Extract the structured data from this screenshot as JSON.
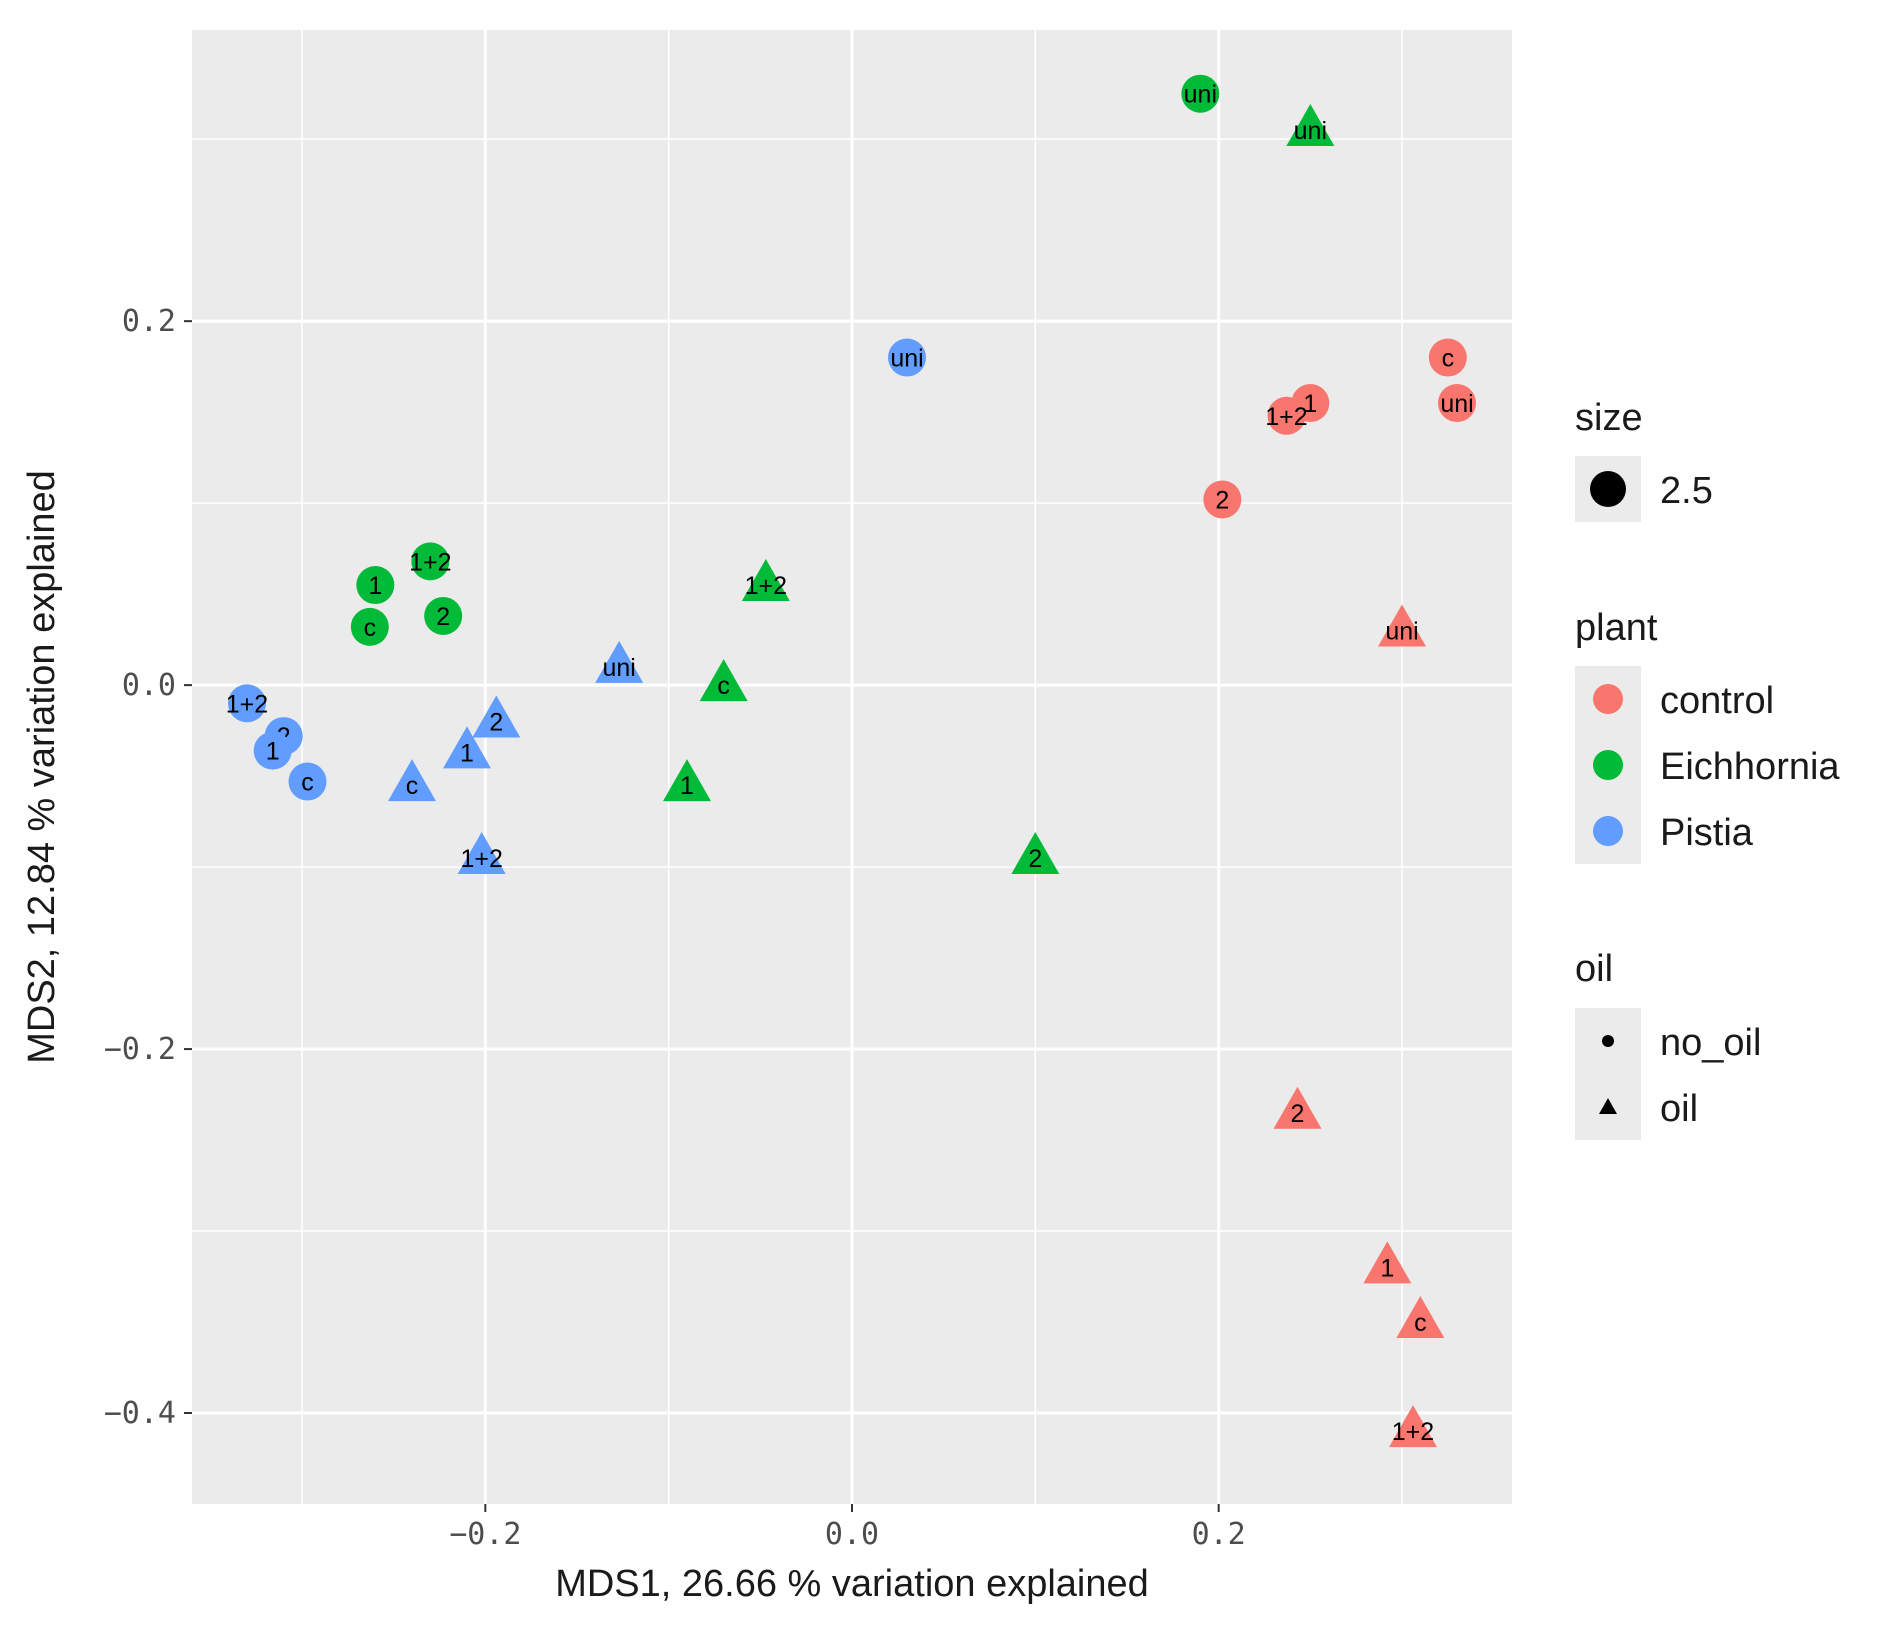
{
  "chart_data": {
    "type": "scatter",
    "xlabel": "MDS1, 26.66 % variation explained",
    "ylabel": "MDS2, 12.84 % variation explained",
    "xlim": [
      -0.36,
      0.36
    ],
    "ylim": [
      -0.45,
      0.36
    ],
    "x_ticks": [
      -0.2,
      0.0,
      0.2
    ],
    "x_tick_labels": [
      "−0.2",
      "0.0",
      "0.2"
    ],
    "y_ticks": [
      -0.4,
      -0.2,
      0.0,
      0.2
    ],
    "y_tick_labels": [
      "−0.4",
      "−0.2",
      "0.0",
      "0.2"
    ],
    "grid": true,
    "legends": {
      "size": {
        "title": "size",
        "items": [
          "2.5"
        ]
      },
      "plant": {
        "title": "plant",
        "items": [
          {
            "label": "control",
            "color": "#F8766D"
          },
          {
            "label": "Eichhornia",
            "color": "#00BA38"
          },
          {
            "label": "Pistia",
            "color": "#619CFF"
          }
        ]
      },
      "oil": {
        "title": "oil",
        "items": [
          {
            "label": "no_oil",
            "shape": "circle"
          },
          {
            "label": "oil",
            "shape": "triangle"
          }
        ]
      }
    },
    "colors": {
      "control": "#F8766D",
      "Eichhornia": "#00BA38",
      "Pistia": "#619CFF"
    },
    "points": [
      {
        "x": 0.19,
        "y": 0.325,
        "plant": "Eichhornia",
        "oil": "no_oil",
        "label": "uni"
      },
      {
        "x": 0.25,
        "y": 0.305,
        "plant": "Eichhornia",
        "oil": "oil",
        "label": "uni"
      },
      {
        "x": 0.03,
        "y": 0.18,
        "plant": "Pistia",
        "oil": "no_oil",
        "label": "uni"
      },
      {
        "x": 0.325,
        "y": 0.18,
        "plant": "control",
        "oil": "no_oil",
        "label": "c"
      },
      {
        "x": 0.33,
        "y": 0.155,
        "plant": "control",
        "oil": "no_oil",
        "label": "uni"
      },
      {
        "x": 0.25,
        "y": 0.155,
        "plant": "control",
        "oil": "no_oil",
        "label": "1"
      },
      {
        "x": 0.237,
        "y": 0.148,
        "plant": "control",
        "oil": "no_oil",
        "label": "1+2"
      },
      {
        "x": 0.202,
        "y": 0.102,
        "plant": "control",
        "oil": "no_oil",
        "label": "2"
      },
      {
        "x": 0.3,
        "y": 0.03,
        "plant": "control",
        "oil": "oil",
        "label": "uni"
      },
      {
        "x": -0.26,
        "y": 0.055,
        "plant": "Eichhornia",
        "oil": "no_oil",
        "label": "1"
      },
      {
        "x": -0.23,
        "y": 0.068,
        "plant": "Eichhornia",
        "oil": "no_oil",
        "label": "1+2"
      },
      {
        "x": -0.223,
        "y": 0.038,
        "plant": "Eichhornia",
        "oil": "no_oil",
        "label": "2"
      },
      {
        "x": -0.263,
        "y": 0.032,
        "plant": "Eichhornia",
        "oil": "no_oil",
        "label": "c"
      },
      {
        "x": -0.047,
        "y": 0.055,
        "plant": "Eichhornia",
        "oil": "oil",
        "label": "1+2"
      },
      {
        "x": -0.07,
        "y": 0.0,
        "plant": "Eichhornia",
        "oil": "oil",
        "label": "c"
      },
      {
        "x": -0.09,
        "y": -0.055,
        "plant": "Eichhornia",
        "oil": "oil",
        "label": "1"
      },
      {
        "x": 0.1,
        "y": -0.095,
        "plant": "Eichhornia",
        "oil": "oil",
        "label": "2"
      },
      {
        "x": -0.127,
        "y": 0.01,
        "plant": "Pistia",
        "oil": "oil",
        "label": "uni"
      },
      {
        "x": -0.33,
        "y": -0.01,
        "plant": "Pistia",
        "oil": "no_oil",
        "label": "1+2"
      },
      {
        "x": -0.31,
        "y": -0.028,
        "plant": "Pistia",
        "oil": "no_oil",
        "label": "2"
      },
      {
        "x": -0.316,
        "y": -0.036,
        "plant": "Pistia",
        "oil": "no_oil",
        "label": "1"
      },
      {
        "x": -0.297,
        "y": -0.053,
        "plant": "Pistia",
        "oil": "no_oil",
        "label": "c"
      },
      {
        "x": -0.194,
        "y": -0.02,
        "plant": "Pistia",
        "oil": "oil",
        "label": "2"
      },
      {
        "x": -0.21,
        "y": -0.037,
        "plant": "Pistia",
        "oil": "oil",
        "label": "1"
      },
      {
        "x": -0.24,
        "y": -0.055,
        "plant": "Pistia",
        "oil": "oil",
        "label": "c"
      },
      {
        "x": -0.202,
        "y": -0.095,
        "plant": "Pistia",
        "oil": "oil",
        "label": "1+2"
      },
      {
        "x": 0.243,
        "y": -0.235,
        "plant": "control",
        "oil": "oil",
        "label": "2"
      },
      {
        "x": 0.292,
        "y": -0.32,
        "plant": "control",
        "oil": "oil",
        "label": "1"
      },
      {
        "x": 0.31,
        "y": -0.35,
        "plant": "control",
        "oil": "oil",
        "label": "c"
      },
      {
        "x": 0.306,
        "y": -0.41,
        "plant": "control",
        "oil": "oil",
        "label": "1+2"
      }
    ]
  }
}
